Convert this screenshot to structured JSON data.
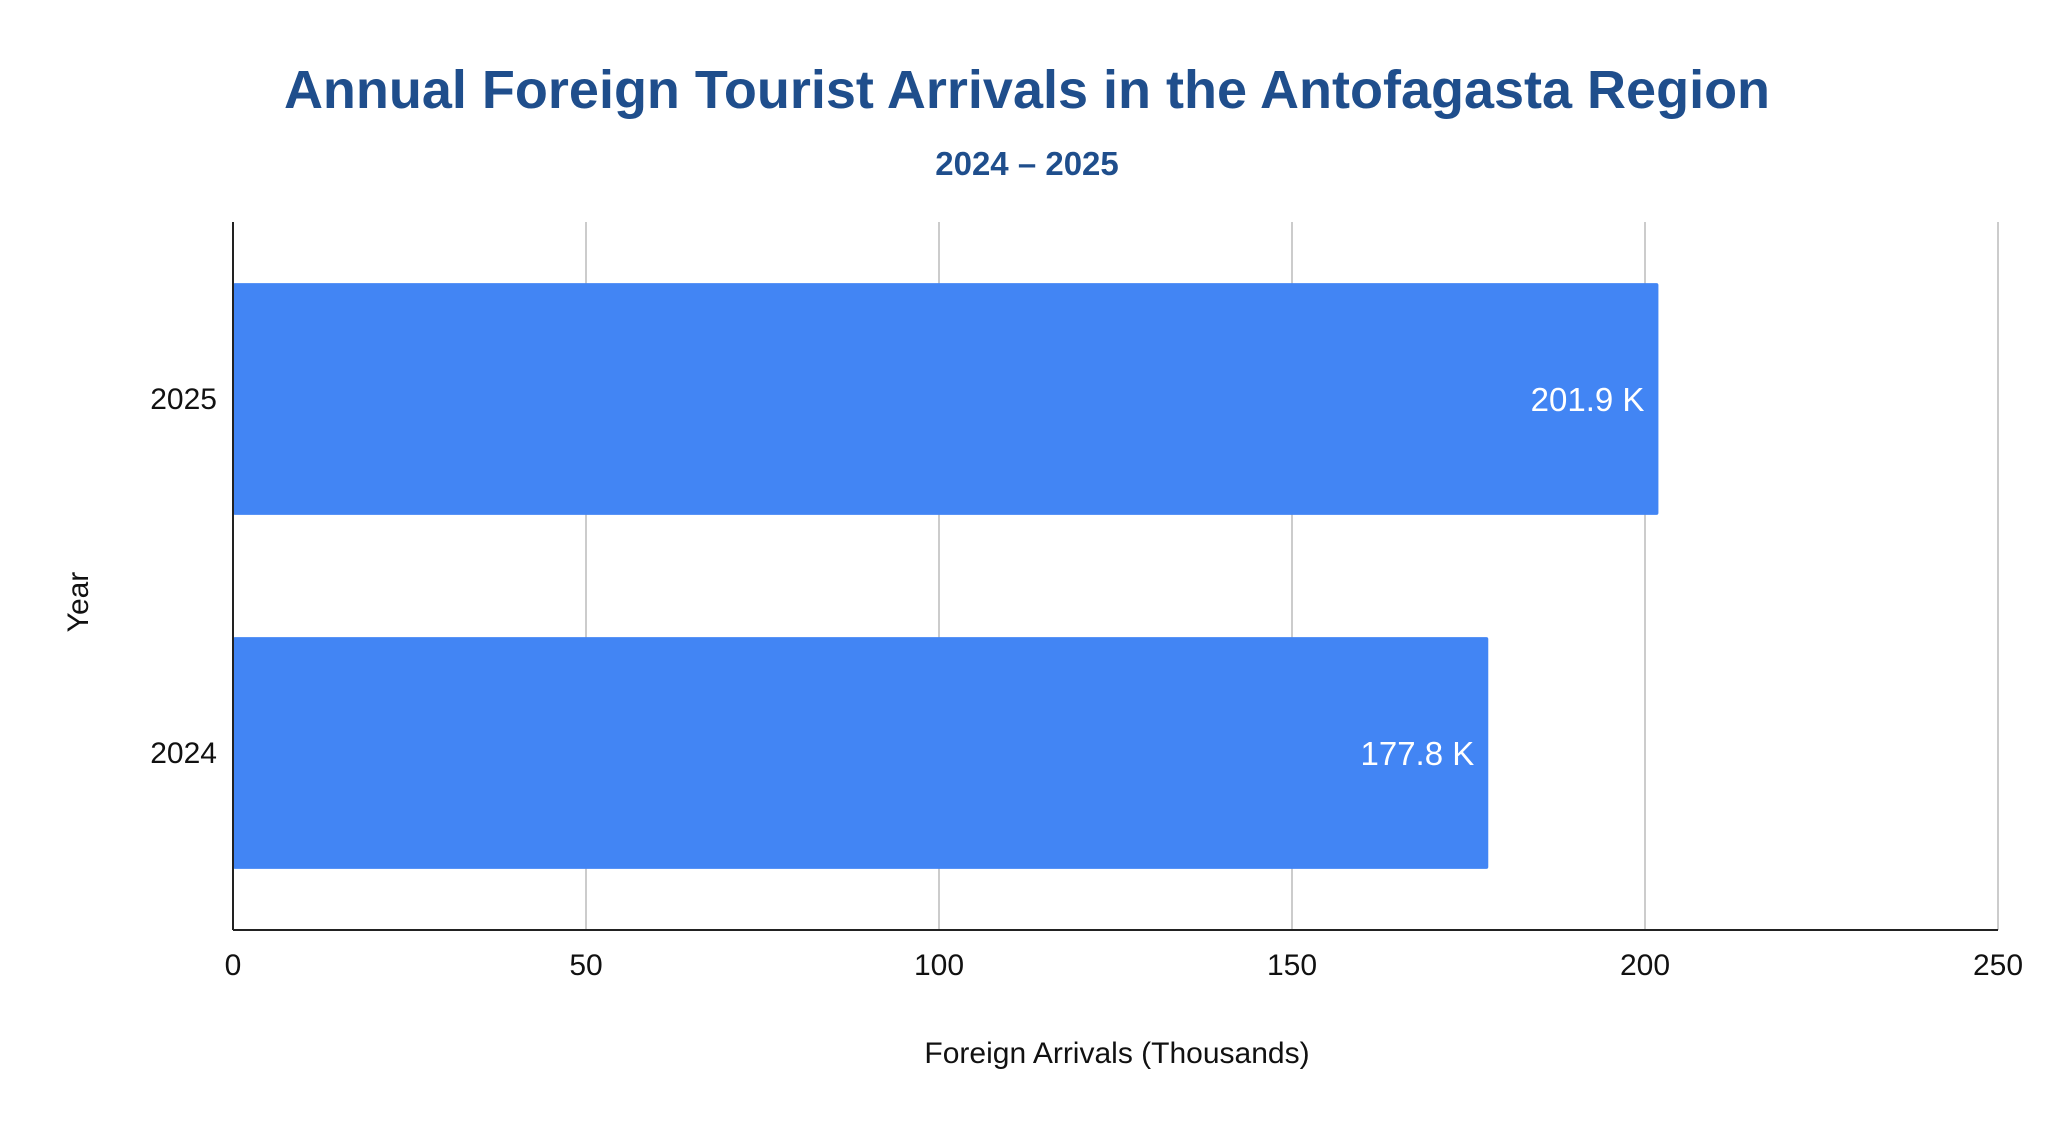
{
  "chart_data": {
    "type": "bar",
    "orientation": "horizontal",
    "title": "Annual Foreign Tourist Arrivals in the Antofagasta Region",
    "subtitle": "2024 – 2025",
    "xlabel": "Foreign Arrivals (Thousands)",
    "ylabel": "Year",
    "xlim": [
      0,
      250
    ],
    "xticks": [
      0,
      50,
      100,
      150,
      200,
      250
    ],
    "categories": [
      "2025",
      "2024"
    ],
    "values": [
      201.9,
      177.8
    ],
    "data_labels": [
      "201.9 K",
      "177.8 K"
    ],
    "bar_color": "#4285f4",
    "grid": true,
    "legend": "none"
  }
}
